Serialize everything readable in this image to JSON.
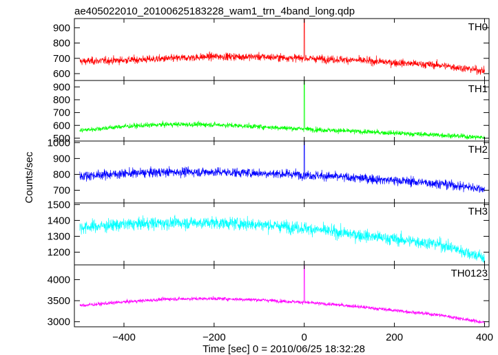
{
  "chart_data": {
    "type": "line",
    "title": "ae405022010_20100625183228_wam1_trn_4band_long.qdp",
    "xlabel": "Time [sec] 0 = 2010/06/25 18:32:28",
    "ylabel": "Counts/sec",
    "xlim": [
      -510,
      410
    ],
    "x_ticks": [
      -400,
      -200,
      0,
      200,
      400
    ],
    "x_tick_labels": [
      "−400",
      "−200",
      "0",
      "200",
      "400"
    ],
    "series": [
      {
        "name": "TH0",
        "color": "#ff0000",
        "ylim": [
          555,
          960
        ],
        "y_ticks": [
          600,
          700,
          800,
          900
        ],
        "x": [
          -500,
          -400,
          -300,
          -200,
          -100,
          0,
          100,
          200,
          300,
          400
        ],
        "values": [
          680,
          688,
          698,
          712,
          710,
          700,
          690,
          672,
          655,
          618
        ],
        "noise": 32,
        "spike": {
          "x": 0,
          "value": 960
        }
      },
      {
        "name": "TH1",
        "color": "#00ff00",
        "ylim": [
          478,
          950
        ],
        "y_ticks": [
          500,
          600,
          700,
          800,
          900
        ],
        "x": [
          -500,
          -400,
          -300,
          -200,
          -100,
          0,
          100,
          200,
          300,
          400
        ],
        "values": [
          560,
          592,
          608,
          606,
          590,
          572,
          555,
          540,
          525,
          505
        ],
        "noise": 25,
        "spike": {
          "x": 0,
          "value": 950
        }
      },
      {
        "name": "TH2",
        "color": "#0000ff",
        "ylim": [
          620,
          1010
        ],
        "y_ticks": [
          700,
          800,
          900,
          1000
        ],
        "x": [
          -500,
          -400,
          -300,
          -200,
          -100,
          0,
          100,
          200,
          300,
          400
        ],
        "values": [
          790,
          805,
          815,
          815,
          808,
          798,
          780,
          762,
          742,
          708
        ],
        "noise": 38,
        "spike": {
          "x": 0,
          "value": 1005
        }
      },
      {
        "name": "TH3",
        "color": "#00ffff",
        "ylim": [
          1120,
          1510
        ],
        "y_ticks": [
          1200,
          1300,
          1400,
          1500
        ],
        "x": [
          -500,
          -400,
          -300,
          -200,
          -100,
          0,
          100,
          200,
          300,
          400
        ],
        "values": [
          1355,
          1375,
          1385,
          1385,
          1375,
          1352,
          1315,
          1282,
          1250,
          1165
        ],
        "noise": 50,
        "spike": null
      },
      {
        "name": "TH0123",
        "color": "#ff00ff",
        "ylim": [
          2880,
          4350
        ],
        "y_ticks": [
          3000,
          3500,
          4000
        ],
        "x": [
          -500,
          -400,
          -300,
          -200,
          -100,
          0,
          100,
          200,
          300,
          400
        ],
        "values": [
          3380,
          3470,
          3540,
          3550,
          3520,
          3460,
          3380,
          3270,
          3160,
          2980
        ],
        "noise": 55,
        "spike": {
          "x": 0,
          "value": 4330
        }
      }
    ],
    "grid": false,
    "legend": "panel labels top-right"
  }
}
